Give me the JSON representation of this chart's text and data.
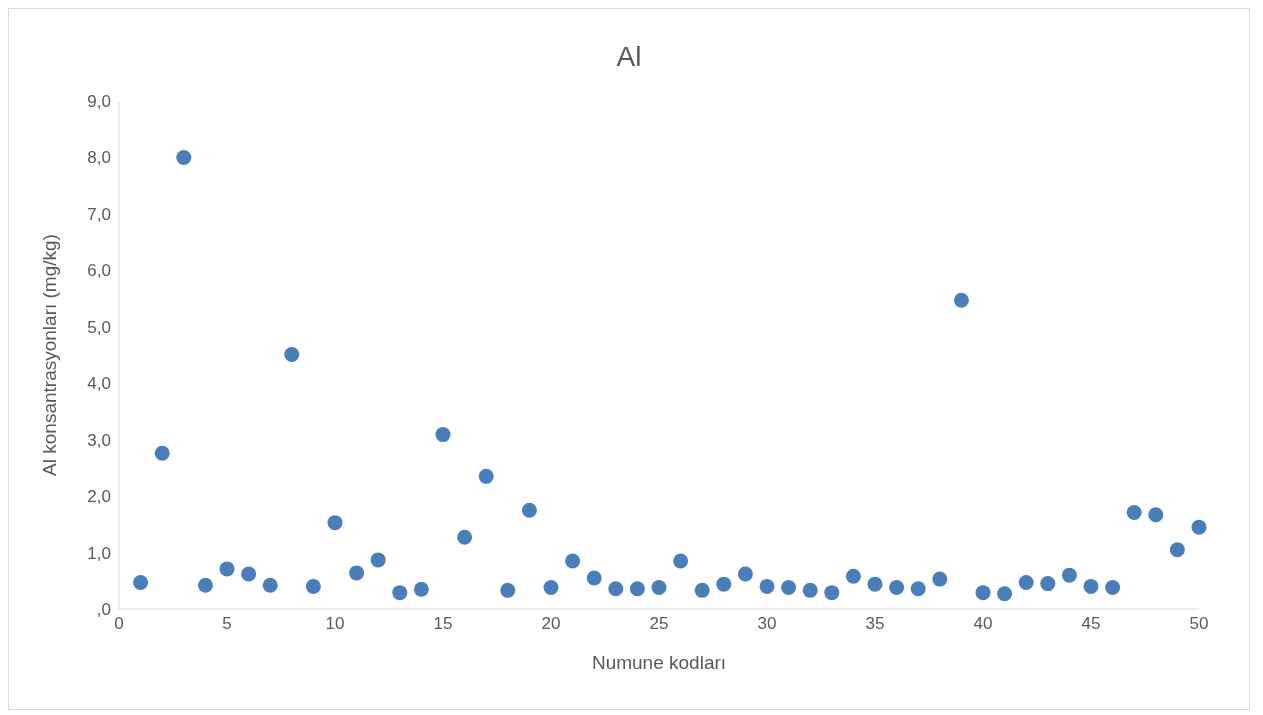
{
  "chart_data": {
    "type": "scatter",
    "title": "Al",
    "xlabel": "Numune kodları",
    "ylabel": "Al konsantrasyonları (mg/kg)",
    "x": [
      1,
      2,
      3,
      4,
      5,
      6,
      7,
      8,
      9,
      10,
      11,
      12,
      13,
      14,
      15,
      16,
      17,
      18,
      19,
      20,
      21,
      22,
      23,
      24,
      25,
      26,
      27,
      28,
      29,
      30,
      31,
      32,
      33,
      34,
      35,
      36,
      37,
      38,
      39,
      40,
      41,
      42,
      43,
      44,
      45,
      46,
      47,
      48,
      49,
      50
    ],
    "series": [
      {
        "color": "#4a7ebb",
        "values": [
          0.47,
          2.76,
          8.0,
          0.42,
          0.71,
          0.62,
          0.42,
          4.51,
          0.4,
          1.53,
          0.64,
          0.87,
          0.29,
          0.35,
          3.09,
          1.27,
          2.35,
          0.33,
          1.75,
          0.38,
          0.85,
          0.55,
          0.36,
          0.36,
          0.38,
          0.85,
          0.33,
          0.44,
          0.62,
          0.4,
          0.38,
          0.33,
          0.29,
          0.58,
          0.44,
          0.38,
          0.36,
          0.53,
          5.47,
          0.29,
          0.27,
          0.47,
          0.45,
          0.6,
          0.4,
          0.38,
          1.71,
          1.67,
          1.05,
          1.45
        ]
      }
    ],
    "xlim": [
      0,
      50
    ],
    "xticks": [
      0,
      5,
      10,
      15,
      20,
      25,
      30,
      35,
      40,
      45,
      50
    ],
    "ylim": [
      0,
      9
    ],
    "yticks": [
      {
        "value": 0,
        "label": ",0"
      },
      {
        "value": 1,
        "label": "1,0"
      },
      {
        "value": 2,
        "label": "2,0"
      },
      {
        "value": 3,
        "label": "3,0"
      },
      {
        "value": 4,
        "label": "4,0"
      },
      {
        "value": 5,
        "label": "5,0"
      },
      {
        "value": 6,
        "label": "6,0"
      },
      {
        "value": 7,
        "label": "7,0"
      },
      {
        "value": 8,
        "label": "8,0"
      },
      {
        "value": 9,
        "label": "9,0"
      }
    ],
    "grid": false,
    "legend": false,
    "marker": "circle"
  }
}
